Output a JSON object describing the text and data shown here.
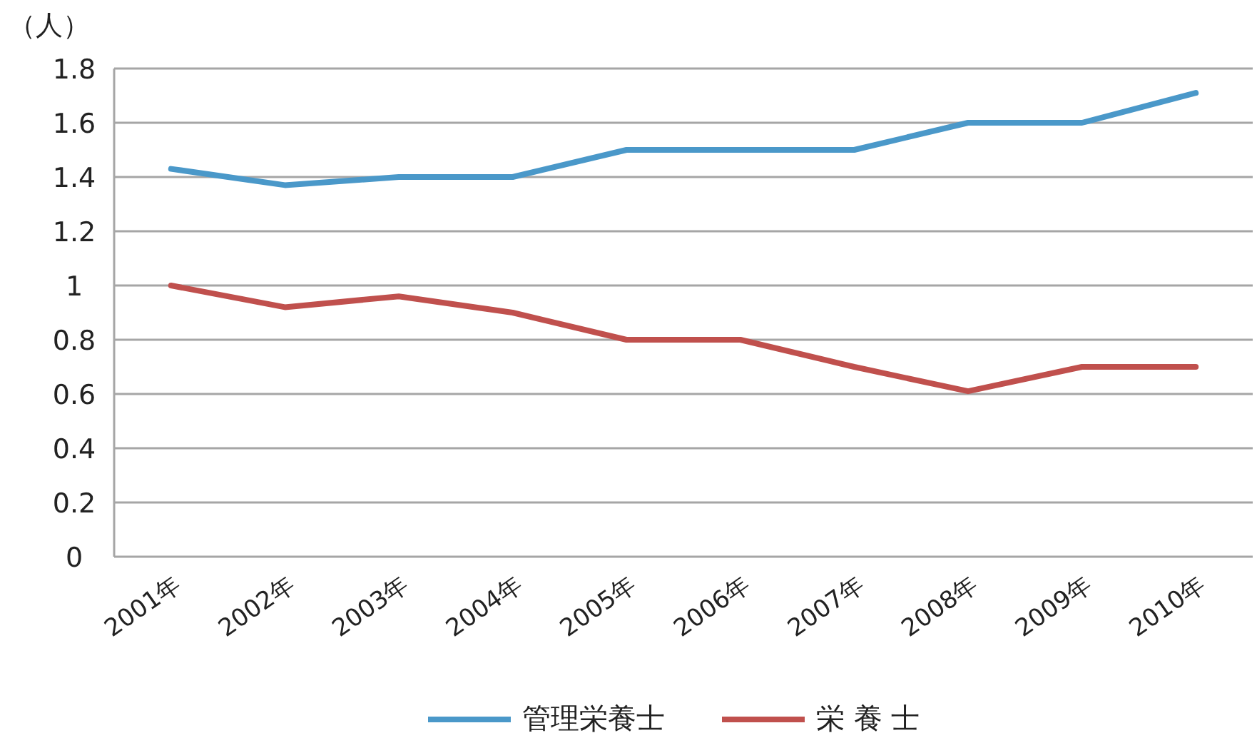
{
  "chart_data": {
    "type": "line",
    "ylabel": "（人）",
    "categories": [
      "2001年",
      "2002年",
      "2003年",
      "2004年",
      "2005年",
      "2006年",
      "2007年",
      "2008年",
      "2009年",
      "2010年"
    ],
    "series": [
      {
        "name": "管理栄養士",
        "color": "#4a98c9",
        "values": [
          1.43,
          1.37,
          1.4,
          1.4,
          1.5,
          1.5,
          1.5,
          1.6,
          1.6,
          1.71
        ]
      },
      {
        "name": "栄 養 士",
        "color": "#c0504d",
        "values": [
          1.0,
          0.92,
          0.96,
          0.9,
          0.8,
          0.8,
          0.7,
          0.61,
          0.7,
          0.7
        ]
      }
    ],
    "ylim": [
      0,
      1.8
    ],
    "yticks": [
      0,
      0.2,
      0.4,
      0.6,
      0.8,
      1,
      1.2,
      1.4,
      1.6,
      1.8
    ],
    "grid": "y",
    "legend": "bottom"
  }
}
